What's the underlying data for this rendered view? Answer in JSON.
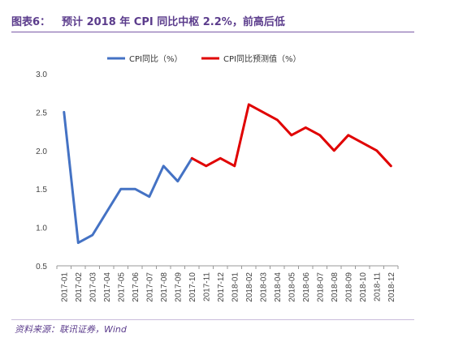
{
  "header": {
    "label": "图表6：",
    "title": "预计 2018 年 CPI 同比中枢 2.2%，前高后低"
  },
  "source": "资料来源：联讯证券，Wind",
  "colors": {
    "actual": "#4472c4",
    "forecast": "#e00000",
    "title": "#5b3c8c"
  },
  "chart_data": {
    "type": "line",
    "categories": [
      "2017-01",
      "2017-02",
      "2017-03",
      "2017-04",
      "2017-05",
      "2017-06",
      "2017-07",
      "2017-08",
      "2017-09",
      "2017-10",
      "2017-11",
      "2017-12",
      "2018-01",
      "2018-02",
      "2018-03",
      "2018-04",
      "2018-05",
      "2018-06",
      "2018-07",
      "2018-08",
      "2018-09",
      "2018-10",
      "2018-11",
      "2018-12"
    ],
    "ylim": [
      0.5,
      3.0
    ],
    "yticks": [
      "0.5",
      "1.0",
      "1.5",
      "2.0",
      "2.5",
      "3.0"
    ],
    "legend_position": "top",
    "series": [
      {
        "name": "CPI同比（%）",
        "color": "#4472c4",
        "values": [
          2.5,
          0.8,
          0.9,
          1.2,
          1.5,
          1.5,
          1.4,
          1.8,
          1.6,
          1.9,
          null,
          null,
          null,
          null,
          null,
          null,
          null,
          null,
          null,
          null,
          null,
          null,
          null,
          null
        ]
      },
      {
        "name": "CPI同比预测值（%）",
        "color": "#e00000",
        "values": [
          null,
          null,
          null,
          null,
          null,
          null,
          null,
          null,
          null,
          1.9,
          1.8,
          1.9,
          1.8,
          2.6,
          2.5,
          2.4,
          2.2,
          2.3,
          2.2,
          2.0,
          2.2,
          2.1,
          2.0,
          1.8
        ]
      }
    ]
  }
}
